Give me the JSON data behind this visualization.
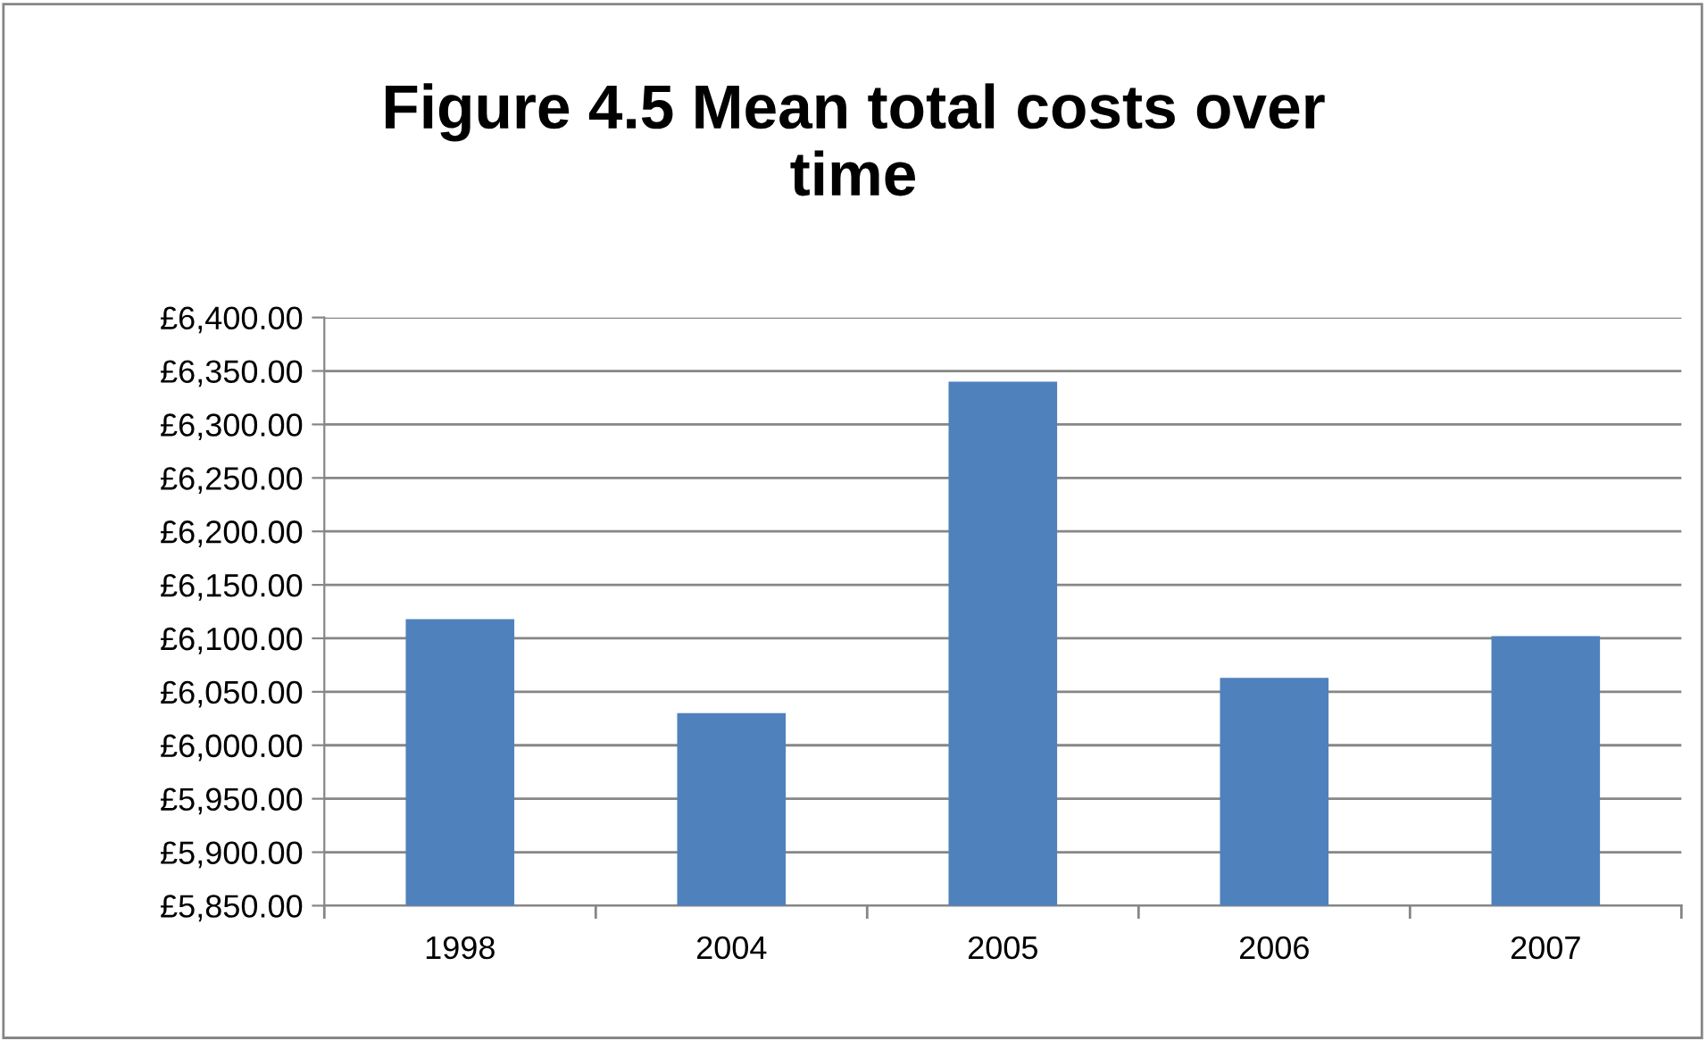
{
  "chart_data": {
    "type": "bar",
    "title": "Figure 4.5 Mean total costs over\ntime",
    "categories": [
      "1998",
      "2004",
      "2005",
      "2006",
      "2007"
    ],
    "values": [
      6118,
      6030,
      6340,
      6063,
      6102
    ],
    "color": "#4f81bd",
    "ylim": [
      5850,
      6400
    ],
    "yticks": [
      {
        "value": 5850,
        "label": "£5,850.00"
      },
      {
        "value": 5900,
        "label": "£5,900.00"
      },
      {
        "value": 5950,
        "label": "£5,950.00"
      },
      {
        "value": 6000,
        "label": "£6,000.00"
      },
      {
        "value": 6050,
        "label": "£6,050.00"
      },
      {
        "value": 6100,
        "label": "£6,100.00"
      },
      {
        "value": 6150,
        "label": "£6,150.00"
      },
      {
        "value": 6200,
        "label": "£6,200.00"
      },
      {
        "value": 6250,
        "label": "£6,250.00"
      },
      {
        "value": 6300,
        "label": "£6,300.00"
      },
      {
        "value": 6350,
        "label": "£6,350.00"
      },
      {
        "value": 6400,
        "label": "£6,400.00"
      }
    ],
    "grid": "y"
  }
}
